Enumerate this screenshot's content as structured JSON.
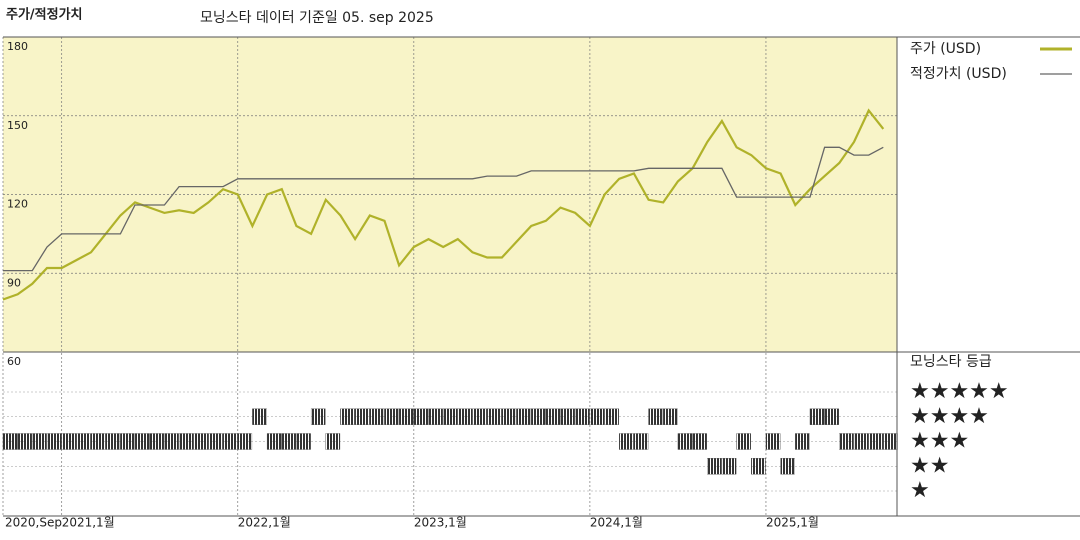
{
  "chart_data": {
    "type": "line",
    "title": "주가/적정가치",
    "subtitle": "모닝스타 데이터 기준일 05. sep 2025",
    "x": [
      "2020-09",
      "2020-10",
      "2020-11",
      "2020-12",
      "2021-01",
      "2021-02",
      "2021-03",
      "2021-04",
      "2021-05",
      "2021-06",
      "2021-07",
      "2021-08",
      "2021-09",
      "2021-10",
      "2021-11",
      "2021-12",
      "2022-01",
      "2022-02",
      "2022-03",
      "2022-04",
      "2022-05",
      "2022-06",
      "2022-07",
      "2022-08",
      "2022-09",
      "2022-10",
      "2022-11",
      "2022-12",
      "2023-01",
      "2023-02",
      "2023-03",
      "2023-04",
      "2023-05",
      "2023-06",
      "2023-07",
      "2023-08",
      "2023-09",
      "2023-10",
      "2023-11",
      "2023-12",
      "2024-01",
      "2024-02",
      "2024-03",
      "2024-04",
      "2024-05",
      "2024-06",
      "2024-07",
      "2024-08",
      "2024-09",
      "2024-10",
      "2024-11",
      "2024-12",
      "2025-01",
      "2025-02",
      "2025-03",
      "2025-04",
      "2025-05",
      "2025-06",
      "2025-07",
      "2025-08",
      "2025-09"
    ],
    "xlim": [
      "2020-09",
      "2025-10"
    ],
    "xticks": [
      {
        "value": "2020-09",
        "label": "2020,Sep"
      },
      {
        "value": "2021-01",
        "label": "2021,1월"
      },
      {
        "value": "2022-01",
        "label": "2022,1월"
      },
      {
        "value": "2023-01",
        "label": "2023,1월"
      },
      {
        "value": "2024-01",
        "label": "2024,1월"
      },
      {
        "value": "2025-01",
        "label": "2025,1월"
      }
    ],
    "ylim": [
      60,
      180
    ],
    "yticks": [
      60,
      90,
      120,
      150,
      180
    ],
    "series": [
      {
        "name": "주가 (USD)",
        "color": "#b0b22a",
        "values": [
          80,
          82,
          86,
          92,
          92,
          95,
          98,
          105,
          112,
          117,
          115,
          113,
          114,
          113,
          117,
          122,
          120,
          108,
          120,
          122,
          108,
          105,
          118,
          112,
          103,
          112,
          110,
          93,
          100,
          103,
          100,
          103,
          98,
          96,
          96,
          102,
          108,
          110,
          115,
          113,
          108,
          120,
          126,
          128,
          118,
          117,
          125,
          130,
          140,
          148,
          138,
          135,
          130,
          128,
          116,
          122,
          127,
          132,
          140,
          152,
          145
        ]
      },
      {
        "name": "적정가치 (USD)",
        "color": "#666666",
        "values": [
          91,
          91,
          91,
          100,
          105,
          105,
          105,
          105,
          105,
          116,
          116,
          116,
          123,
          123,
          123,
          123,
          126,
          126,
          126,
          126,
          126,
          126,
          126,
          126,
          126,
          126,
          126,
          126,
          126,
          126,
          126,
          126,
          126,
          127,
          127,
          127,
          129,
          129,
          129,
          129,
          129,
          129,
          129,
          129,
          130,
          130,
          130,
          130,
          130,
          130,
          119,
          119,
          119,
          119,
          119,
          119,
          138,
          138,
          135,
          135,
          138
        ]
      }
    ],
    "ratings": {
      "title": "모닝스타 등급",
      "labels": [
        "★",
        "★★",
        "★★★",
        "★★★★",
        "★★★★★"
      ],
      "color": "#333333",
      "values": [
        3,
        3,
        3,
        3,
        3,
        3,
        3,
        3,
        3,
        3,
        3,
        3,
        3,
        3,
        3,
        3,
        3,
        4,
        3,
        3,
        3,
        4,
        3,
        4,
        4,
        4,
        4,
        4,
        4,
        4,
        4,
        4,
        4,
        4,
        4,
        4,
        4,
        4,
        4,
        4,
        4,
        4,
        3,
        3,
        4,
        4,
        3,
        3,
        2,
        2,
        3,
        2,
        3,
        2,
        3,
        4,
        4,
        3,
        3,
        3,
        3
      ]
    }
  }
}
